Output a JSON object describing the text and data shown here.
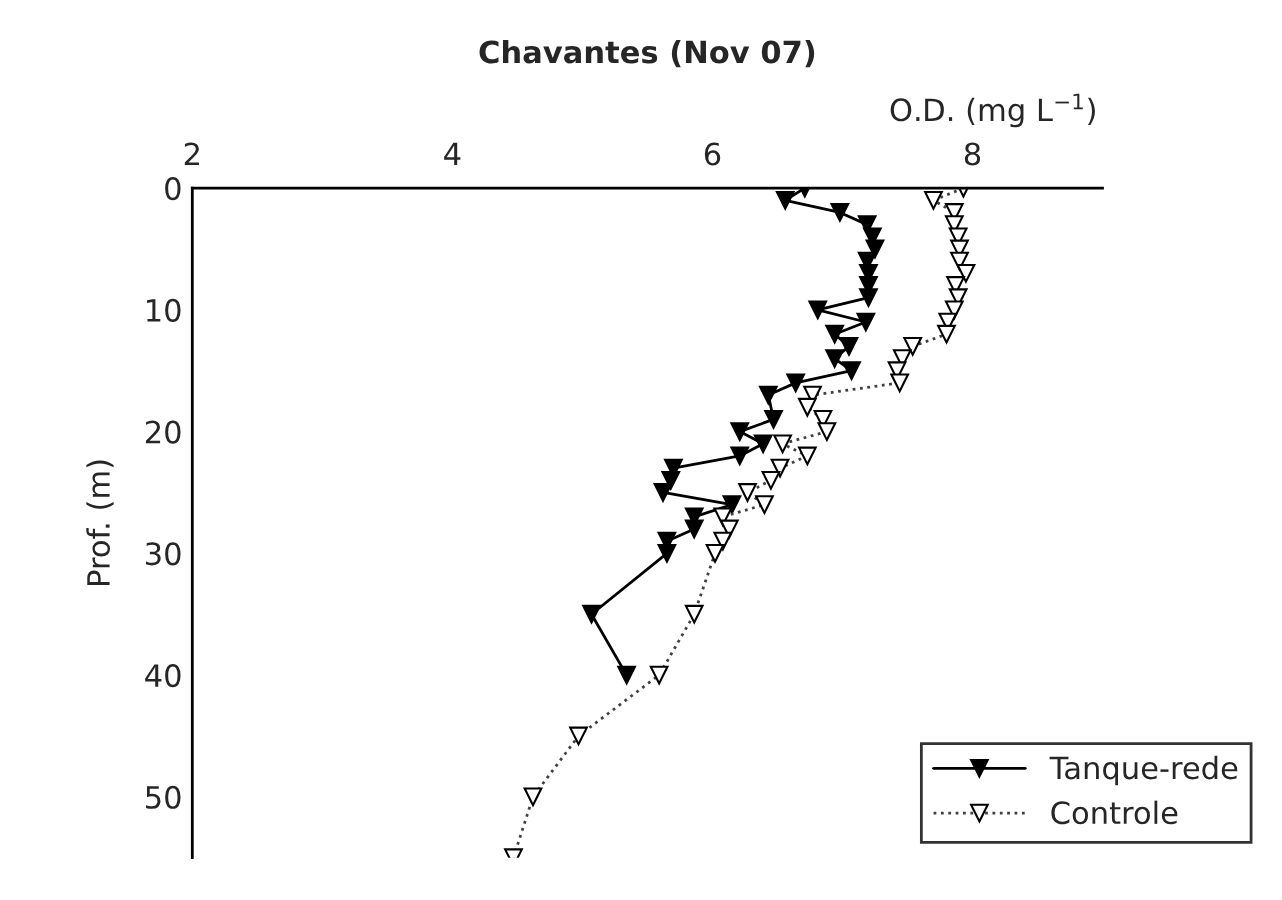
{
  "chart_data": {
    "type": "line",
    "title": "Chavantes (Nov 07)",
    "xlabel": "O.D. (mg L$^{−1}$)",
    "ylabel": "Prof. (m)",
    "xlim": [
      2,
      9
    ],
    "xticks": [
      2,
      4,
      6,
      8
    ],
    "ylim": [
      55,
      0
    ],
    "yticks": [
      0,
      10,
      20,
      30,
      40,
      50
    ],
    "grid": false,
    "legend": "bottom right",
    "marker": "triangle",
    "series": [
      {
        "name": "Tanque-rede",
        "color": "#000000",
        "line_style": "solid",
        "x": [
          6.71,
          6.56,
          6.98,
          7.19,
          7.23,
          7.25,
          7.19,
          7.2,
          7.2,
          7.2,
          6.81,
          7.18,
          6.94,
          7.05,
          6.94,
          7.07,
          6.64,
          6.43,
          6.47,
          6.21,
          6.39,
          6.21,
          5.7,
          5.68,
          5.62,
          6.15,
          5.86,
          5.86,
          5.65,
          5.65,
          5.07,
          5.34
        ],
        "values": [
          0,
          1,
          2,
          3,
          4,
          5,
          6,
          7,
          8,
          9,
          10,
          11,
          12,
          13,
          14,
          15,
          16,
          17,
          19,
          20,
          21,
          22,
          23,
          24,
          25,
          26,
          27,
          28,
          29,
          30,
          35,
          40
        ]
      },
      {
        "name": "Controle",
        "color": "#404040",
        "line_style": "dotted",
        "x": [
          7.93,
          7.7,
          7.86,
          7.86,
          7.89,
          7.9,
          7.9,
          7.95,
          7.87,
          7.89,
          7.86,
          7.81,
          7.8,
          7.54,
          7.46,
          7.42,
          7.44,
          6.77,
          6.73,
          6.85,
          6.88,
          6.54,
          6.73,
          6.52,
          6.45,
          6.27,
          6.4,
          6.08,
          6.13,
          6.08,
          6.02,
          5.86,
          5.59,
          4.97,
          4.62,
          4.47
        ],
        "values": [
          0,
          1,
          2,
          3,
          4,
          5,
          6,
          7,
          8,
          9,
          10,
          11,
          12,
          13,
          14,
          15,
          16,
          17,
          18,
          19,
          20,
          21,
          22,
          23,
          24,
          25,
          26,
          27,
          28,
          29,
          30,
          35,
          40,
          45,
          50,
          55
        ]
      }
    ]
  }
}
